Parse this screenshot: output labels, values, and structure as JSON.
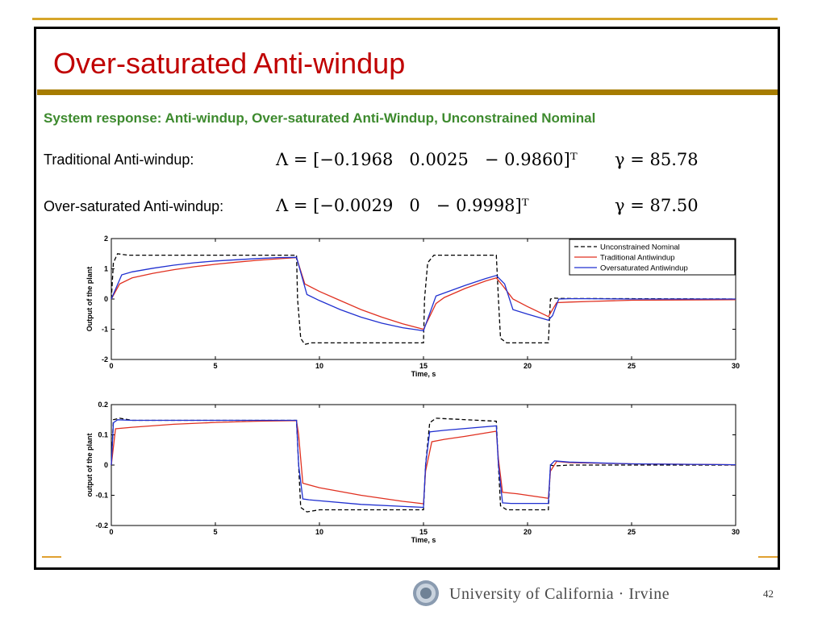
{
  "slide": {
    "title": "Over-saturated Anti-windup",
    "subtitle": "System response: Anti-windup, Over-saturated Anti-Windup, Unconstrained Nominal",
    "rows": [
      {
        "label": "Traditional Anti-windup:",
        "lambda": "Λ = [−0.1968   0.0025   − 0.9860]ᵀ",
        "gamma": "γ = 85.78"
      },
      {
        "label": "Over-saturated Anti-windup:",
        "lambda": "Λ = [−0.0029   0   − 0.9998]ᵀ",
        "gamma": "γ = 87.50"
      }
    ],
    "footer": "University of California · Irvine",
    "page_number": "42",
    "colors": {
      "title": "#c00000",
      "subtitle": "#3d8a2e",
      "rule": "#a67c00",
      "accent": "#d6a52a"
    }
  },
  "chart_data": [
    {
      "type": "line",
      "xlabel": "Time, s",
      "ylabel": "Output of the plant",
      "xlim": [
        0,
        30
      ],
      "ylim": [
        -2,
        2
      ],
      "xticks": [
        0,
        5,
        10,
        15,
        20,
        25,
        30
      ],
      "yticks": [
        -2,
        -1,
        0,
        1,
        2
      ],
      "legend_position": "top-right",
      "series": [
        {
          "name": "Unconstrained Nominal",
          "color": "#000000",
          "dash": true,
          "x": [
            0,
            0.1,
            0.3,
            0.8,
            8.9,
            8.95,
            9.1,
            9.3,
            9.6,
            15.0,
            15.05,
            15.2,
            15.5,
            18.5,
            18.6,
            18.7,
            19.0,
            21.0,
            21.1,
            21.3,
            21.6,
            30
          ],
          "y": [
            0,
            1.2,
            1.5,
            1.45,
            1.45,
            0,
            -1.3,
            -1.5,
            -1.45,
            -1.45,
            0,
            1.2,
            1.45,
            1.45,
            0,
            -1.3,
            -1.45,
            -1.45,
            0,
            0.03,
            0.02,
            0.0
          ]
        },
        {
          "name": "Traditional Antiwindup",
          "color": "#e03020",
          "dash": false,
          "x": [
            0,
            0.4,
            1,
            2,
            3,
            4,
            5,
            6,
            7,
            8,
            8.9,
            9.3,
            10,
            11,
            12,
            13,
            14,
            15,
            15.6,
            16,
            17,
            18,
            18.5,
            18.8,
            19.3,
            20,
            21,
            21.4,
            22,
            23,
            25,
            30
          ],
          "y": [
            0,
            0.5,
            0.7,
            0.85,
            0.97,
            1.07,
            1.15,
            1.22,
            1.28,
            1.33,
            1.37,
            0.5,
            0.25,
            -0.05,
            -0.35,
            -0.6,
            -0.82,
            -1.0,
            -0.15,
            0.05,
            0.35,
            0.6,
            0.7,
            0.45,
            0.0,
            -0.25,
            -0.58,
            -0.12,
            -0.1,
            -0.08,
            -0.04,
            -0.02
          ]
        },
        {
          "name": "Oversaturated Antiwindup",
          "color": "#2030d0",
          "dash": false,
          "x": [
            0,
            0.5,
            1,
            2,
            3,
            4,
            5,
            6,
            7,
            8,
            8.9,
            9.4,
            10,
            11,
            12,
            13,
            14,
            15,
            15.6,
            16,
            17,
            18,
            18.5,
            18.9,
            19.3,
            20,
            21,
            21.2,
            21.5,
            22,
            23,
            25,
            30
          ],
          "y": [
            0,
            0.8,
            0.9,
            1.02,
            1.12,
            1.2,
            1.26,
            1.3,
            1.34,
            1.37,
            1.38,
            0.15,
            -0.05,
            -0.35,
            -0.6,
            -0.8,
            -0.95,
            -1.05,
            0.1,
            0.2,
            0.45,
            0.68,
            0.78,
            0.5,
            -0.35,
            -0.5,
            -0.7,
            -0.55,
            0.0,
            0.01,
            0.01,
            0.0,
            0.0
          ]
        }
      ]
    },
    {
      "type": "line",
      "xlabel": "Time, s",
      "ylabel": "output of the plant",
      "xlim": [
        0,
        30
      ],
      "ylim": [
        -0.2,
        0.2
      ],
      "xticks": [
        0,
        5,
        10,
        15,
        20,
        25,
        30
      ],
      "yticks": [
        -0.2,
        -0.1,
        0,
        0.1,
        0.2
      ],
      "series": [
        {
          "name": "Unconstrained Nominal",
          "color": "#000000",
          "dash": true,
          "x": [
            0,
            0.1,
            0.4,
            1,
            8.9,
            9.0,
            9.1,
            9.4,
            10,
            15,
            15.1,
            15.3,
            15.6,
            18.5,
            18.6,
            18.7,
            19.0,
            21.0,
            21.1,
            21.3,
            22,
            30
          ],
          "y": [
            0,
            0.15,
            0.155,
            0.148,
            0.148,
            0,
            -0.14,
            -0.155,
            -0.148,
            -0.148,
            0,
            0.14,
            0.155,
            0.145,
            0,
            -0.135,
            -0.148,
            -0.148,
            0,
            -0.003,
            0.0,
            0.0
          ]
        },
        {
          "name": "Traditional Antiwindup",
          "color": "#e03020",
          "dash": false,
          "x": [
            0,
            0.2,
            1,
            3,
            5,
            7,
            8.9,
            9.0,
            9.2,
            10,
            12,
            14,
            15,
            15.1,
            15.4,
            16,
            17,
            18.5,
            18.6,
            18.8,
            19.5,
            21,
            21.1,
            21.4,
            22,
            25,
            30
          ],
          "y": [
            0,
            0.12,
            0.125,
            0.135,
            0.141,
            0.145,
            0.147,
            0.1,
            -0.06,
            -0.075,
            -0.1,
            -0.12,
            -0.128,
            -0.02,
            0.077,
            0.085,
            0.095,
            0.112,
            0.02,
            -0.09,
            -0.095,
            -0.11,
            -0.02,
            0.012,
            0.008,
            0.004,
            0.001
          ]
        },
        {
          "name": "Oversaturated Antiwindup",
          "color": "#2030d0",
          "dash": false,
          "x": [
            0,
            0.1,
            0.3,
            1,
            5,
            8.9,
            9.0,
            9.2,
            9.5,
            12,
            15,
            15.1,
            15.3,
            16,
            18.5,
            18.6,
            18.8,
            19.2,
            21,
            21.1,
            21.3,
            22,
            25,
            30
          ],
          "y": [
            0,
            0.14,
            0.15,
            0.148,
            0.148,
            0.148,
            0.0,
            -0.112,
            -0.115,
            -0.13,
            -0.14,
            0.0,
            0.11,
            0.115,
            0.13,
            0.0,
            -0.125,
            -0.127,
            -0.127,
            0.0,
            0.014,
            0.01,
            0.004,
            0.001
          ]
        }
      ]
    }
  ]
}
